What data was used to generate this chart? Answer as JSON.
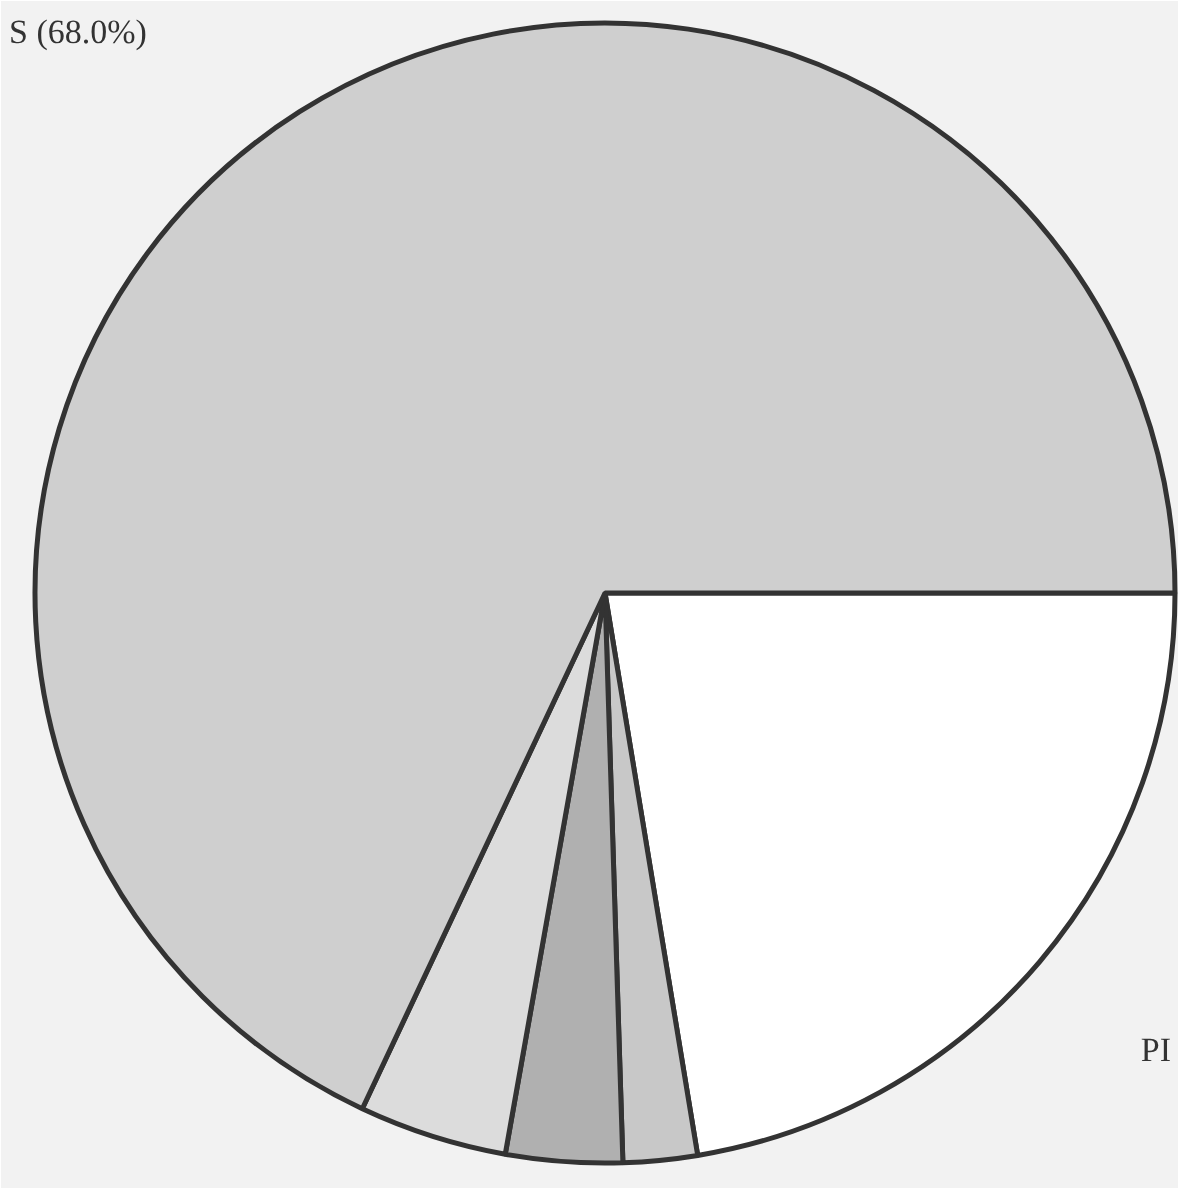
{
  "chart_data": {
    "type": "pie",
    "categories": [
      "PI",
      null,
      null,
      null,
      "S (68.0%)"
    ],
    "values": [
      22.4,
      2.1,
      3.3,
      4.2,
      68.0
    ],
    "colors": [
      "#ffffff",
      "#c8c8c8",
      "#b0b0b0",
      "#dcdcdc",
      "#cfcfcf"
    ]
  }
}
